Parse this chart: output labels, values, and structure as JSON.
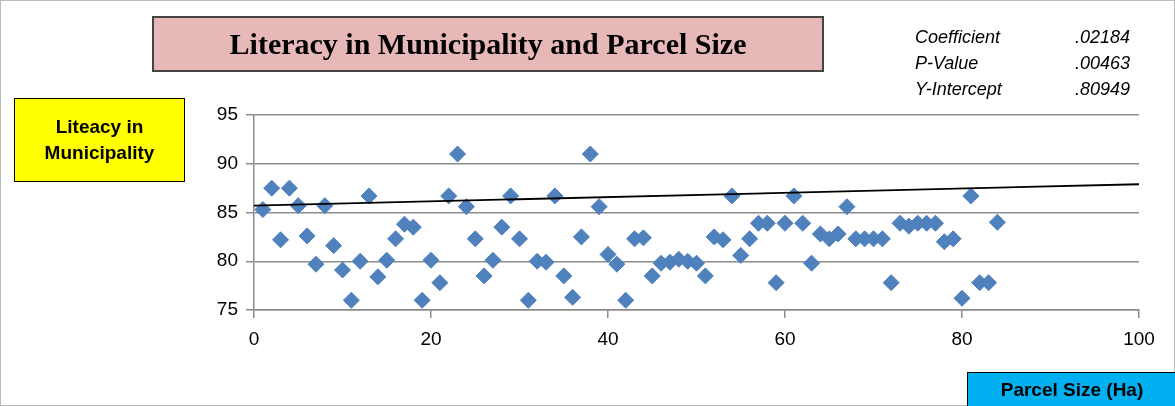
{
  "chart_data": {
    "type": "scatter",
    "title": "Literacy in Municipality and Parcel Size",
    "xlabel": "Parcel Size (Ha)",
    "ylabel": "Liteacy in Municipality",
    "annotations": [
      "Coefficient .02184",
      "P-Value .00463",
      "Y-Intercept .80949"
    ],
    "xlim": [
      0,
      100
    ],
    "xticks": [
      0,
      20,
      40,
      60,
      80,
      100
    ],
    "ylim": [
      75,
      95
    ],
    "yticks": [
      75,
      80,
      85,
      90,
      95
    ],
    "grid": "y",
    "legend": false,
    "marker": "diamond",
    "series": [
      {
        "color": "#4f81bd",
        "x": [
          1,
          2,
          3,
          4,
          5,
          6,
          7,
          8,
          9,
          10,
          11,
          12,
          13,
          14,
          15,
          16,
          17,
          18,
          19,
          20,
          21,
          22,
          23,
          24,
          25,
          26,
          27,
          28,
          29,
          30,
          31,
          32,
          33,
          34,
          35,
          36,
          37,
          38,
          39,
          40,
          41,
          42,
          43,
          44,
          45,
          46,
          47,
          48,
          49,
          50,
          51,
          52,
          53,
          54,
          55,
          56,
          57,
          58,
          59,
          60,
          61,
          62,
          63,
          64,
          65,
          66,
          67,
          68,
          69,
          70,
          71,
          72,
          73,
          74,
          75,
          76,
          77,
          78,
          79,
          80,
          81,
          82,
          83,
          84
        ],
        "values": [
          85.3,
          87.5,
          82.2,
          87.5,
          85.7,
          82.6,
          79.7,
          85.7,
          81.6,
          79.1,
          76,
          80,
          86.7,
          78.4,
          80.1,
          82.3,
          83.8,
          83.5,
          76,
          80.1,
          77.8,
          86.7,
          91,
          85.6,
          82.3,
          78.5,
          80.1,
          83.5,
          86.7,
          82.3,
          76,
          80,
          79.9,
          86.7,
          78.5,
          76.3,
          82.5,
          91,
          85.6,
          80.7,
          79.7,
          76,
          82.3,
          82.4,
          78.5,
          79.8,
          79.9,
          80.2,
          80,
          79.8,
          78.5,
          82.5,
          82.2,
          86.7,
          80.6,
          82.3,
          83.9,
          83.9,
          77.8,
          83.9,
          86.7,
          83.9,
          79.8,
          82.8,
          82.3,
          82.8,
          85.6,
          82.3,
          82.3,
          82.3,
          82.3,
          77.8,
          83.9,
          83.6,
          83.9,
          83.9,
          83.9,
          82,
          82.3,
          76.2,
          86.7,
          77.8,
          77.8,
          84
        ]
      },
      {
        "type": "line",
        "color": "#000000",
        "marker": "none",
        "x": [
          0,
          100
        ],
        "values": [
          85.7,
          87.9
        ]
      }
    ]
  }
}
